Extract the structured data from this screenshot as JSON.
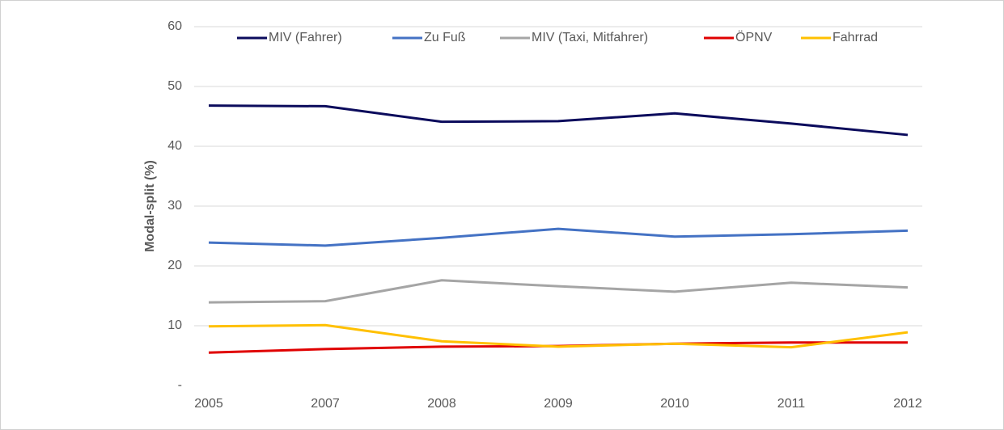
{
  "chart_data": {
    "type": "line",
    "y_label": "Modal-split (%)",
    "categories": [
      "2005",
      "2007",
      "2008",
      "2009",
      "2010",
      "2011",
      "2012"
    ],
    "series": [
      {
        "name": "MIV (Fahrer)",
        "color": "#0b0b5c",
        "values": [
          46.8,
          46.7,
          44.1,
          44.2,
          45.5,
          43.8,
          41.9
        ]
      },
      {
        "name": "Zu Fuß",
        "color": "#4472c4",
        "values": [
          23.9,
          23.4,
          24.7,
          26.2,
          24.9,
          25.3,
          25.9
        ]
      },
      {
        "name": "MIV (Taxi, Mitfahrer)",
        "color": "#a5a5a5",
        "values": [
          13.9,
          14.1,
          17.6,
          16.6,
          15.7,
          17.2,
          16.4
        ]
      },
      {
        "name": "ÖPNV",
        "color": "#e00000",
        "values": [
          5.5,
          6.1,
          6.5,
          6.6,
          7.0,
          7.2,
          7.2
        ]
      },
      {
        "name": "Fahrrad",
        "color": "#ffc000",
        "values": [
          9.9,
          10.1,
          7.4,
          6.5,
          7.0,
          6.4,
          8.9
        ]
      }
    ],
    "ylim": [
      0,
      60
    ],
    "yticks": [
      {
        "value": 0,
        "label": "-"
      },
      10,
      20,
      30,
      40,
      50,
      60
    ],
    "grid": true,
    "legend": "top"
  }
}
